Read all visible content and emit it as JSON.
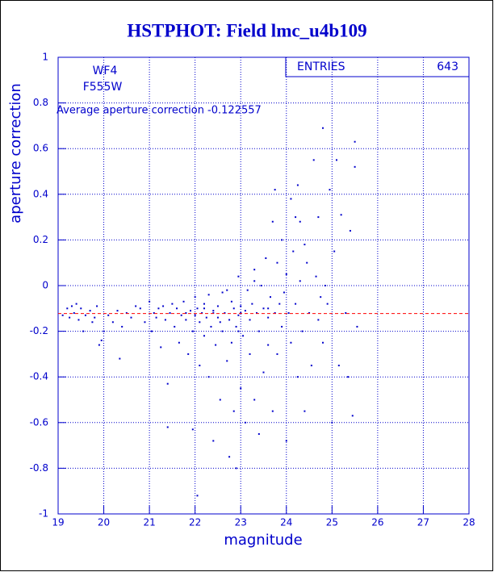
{
  "chart_data": {
    "type": "scatter",
    "title": "HSTPHOT: Field lmc_u4b109",
    "x_label": "magnitude",
    "y_label": "aperture correction",
    "labels": [
      "WF4",
      "F555W"
    ],
    "annotation": "Average aperture correction -0.122557",
    "mean_line": -0.122557,
    "mean_line_color": "#ff0000",
    "stats": {
      "label": "ENTRIES",
      "value": 643
    },
    "color": "#0000cc",
    "grid": true,
    "xlim": [
      19,
      28
    ],
    "xticks": [
      19,
      20,
      21,
      22,
      23,
      24,
      25,
      26,
      27,
      28
    ],
    "ylim": [
      -1,
      1
    ],
    "yticks": [
      -1,
      -0.8,
      -0.6,
      -0.4,
      -0.2,
      0,
      0.2,
      0.4,
      0.6,
      0.8,
      1
    ],
    "x": [
      19.1,
      19.2,
      19.25,
      19.3,
      19.35,
      19.4,
      19.45,
      19.5,
      19.55,
      19.6,
      19.7,
      19.75,
      19.8,
      19.85,
      19.9,
      19.95,
      20.0,
      20.1,
      20.2,
      20.3,
      20.35,
      20.4,
      20.5,
      20.6,
      20.7,
      20.8,
      20.9,
      21.0,
      21.05,
      21.1,
      21.15,
      21.2,
      21.25,
      21.3,
      21.35,
      21.4,
      21.4,
      21.45,
      21.5,
      21.55,
      21.6,
      21.65,
      21.7,
      21.75,
      21.8,
      21.85,
      21.9,
      21.95,
      22.0,
      22.0,
      22.05,
      22.1,
      22.1,
      22.15,
      22.2,
      22.2,
      22.25,
      22.3,
      22.3,
      22.35,
      22.4,
      22.4,
      22.45,
      22.5,
      22.5,
      22.55,
      22.6,
      22.6,
      22.65,
      22.7,
      22.75,
      22.75,
      22.8,
      22.8,
      22.85,
      22.9,
      22.9,
      22.95,
      22.95,
      23.0,
      23.0,
      23.05,
      23.1,
      23.1,
      23.15,
      23.2,
      23.2,
      23.25,
      23.3,
      23.3,
      23.35,
      23.4,
      23.4,
      23.45,
      23.5,
      23.5,
      23.55,
      23.6,
      23.6,
      23.65,
      23.7,
      23.7,
      23.75,
      23.75,
      23.8,
      23.8,
      23.85,
      23.9,
      23.9,
      23.95,
      24.0,
      24.0,
      24.05,
      24.1,
      24.1,
      24.15,
      24.2,
      24.25,
      24.25,
      24.3,
      24.3,
      24.35,
      24.4,
      24.4,
      24.45,
      24.5,
      24.55,
      24.6,
      24.65,
      24.7,
      24.7,
      24.75,
      24.8,
      24.8,
      24.85,
      24.9,
      24.95,
      25.0,
      25.05,
      25.1,
      25.15,
      25.2,
      25.3,
      25.35,
      25.4,
      25.45,
      25.5,
      25.5,
      25.55,
      22.05,
      21.95,
      22.85,
      24.2,
      23.3,
      22.7,
      22.4,
      22.2,
      21.8,
      23.0,
      23.6,
      22.55,
      22.95
    ],
    "y": [
      -0.13,
      -0.1,
      -0.14,
      -0.09,
      -0.12,
      -0.08,
      -0.15,
      -0.1,
      -0.2,
      -0.13,
      -0.11,
      -0.16,
      -0.14,
      -0.09,
      -0.26,
      -0.24,
      -0.2,
      -0.13,
      -0.16,
      -0.11,
      -0.32,
      -0.18,
      -0.12,
      -0.14,
      -0.09,
      -0.1,
      -0.16,
      -0.07,
      -0.2,
      -0.12,
      -0.14,
      -0.1,
      -0.27,
      -0.09,
      -0.15,
      -0.43,
      -0.62,
      -0.12,
      -0.08,
      -0.18,
      -0.1,
      -0.25,
      -0.13,
      -0.07,
      -0.15,
      -0.3,
      -0.11,
      -0.2,
      -0.13,
      -0.05,
      -0.1,
      -0.16,
      -0.35,
      -0.12,
      -0.08,
      -0.22,
      -0.14,
      -0.04,
      -0.4,
      -0.18,
      -0.11,
      -0.68,
      -0.26,
      -0.09,
      -0.14,
      -0.5,
      -0.2,
      -0.03,
      -0.12,
      -0.33,
      -0.15,
      -0.75,
      -0.07,
      -0.25,
      -0.1,
      -0.18,
      -0.8,
      -0.13,
      0.04,
      -0.09,
      -0.45,
      -0.22,
      -0.11,
      -0.6,
      -0.02,
      -0.15,
      -0.3,
      -0.08,
      0.07,
      -0.5,
      -0.12,
      -0.2,
      -0.65,
      0.0,
      -0.1,
      -0.38,
      0.12,
      -0.14,
      -0.26,
      -0.05,
      0.28,
      -0.55,
      0.42,
      -0.12,
      0.1,
      -0.3,
      -0.08,
      0.2,
      -0.18,
      -0.03,
      0.05,
      -0.68,
      -0.12,
      0.38,
      -0.25,
      0.15,
      -0.08,
      0.44,
      -0.4,
      0.02,
      0.28,
      -0.2,
      0.18,
      -0.55,
      0.1,
      -0.12,
      -0.35,
      0.55,
      0.04,
      0.3,
      -0.15,
      -0.05,
      0.69,
      -0.25,
      0.0,
      -0.08,
      0.42,
      -0.6,
      0.15,
      0.55,
      -0.35,
      0.31,
      -0.12,
      -0.4,
      0.24,
      -0.57,
      0.63,
      0.52,
      -0.18,
      -0.92,
      -0.63,
      -0.55,
      0.3,
      0.02,
      -0.02,
      -0.12,
      -0.1,
      -0.12,
      -0.12,
      -0.1,
      -0.16,
      -0.2
    ]
  }
}
